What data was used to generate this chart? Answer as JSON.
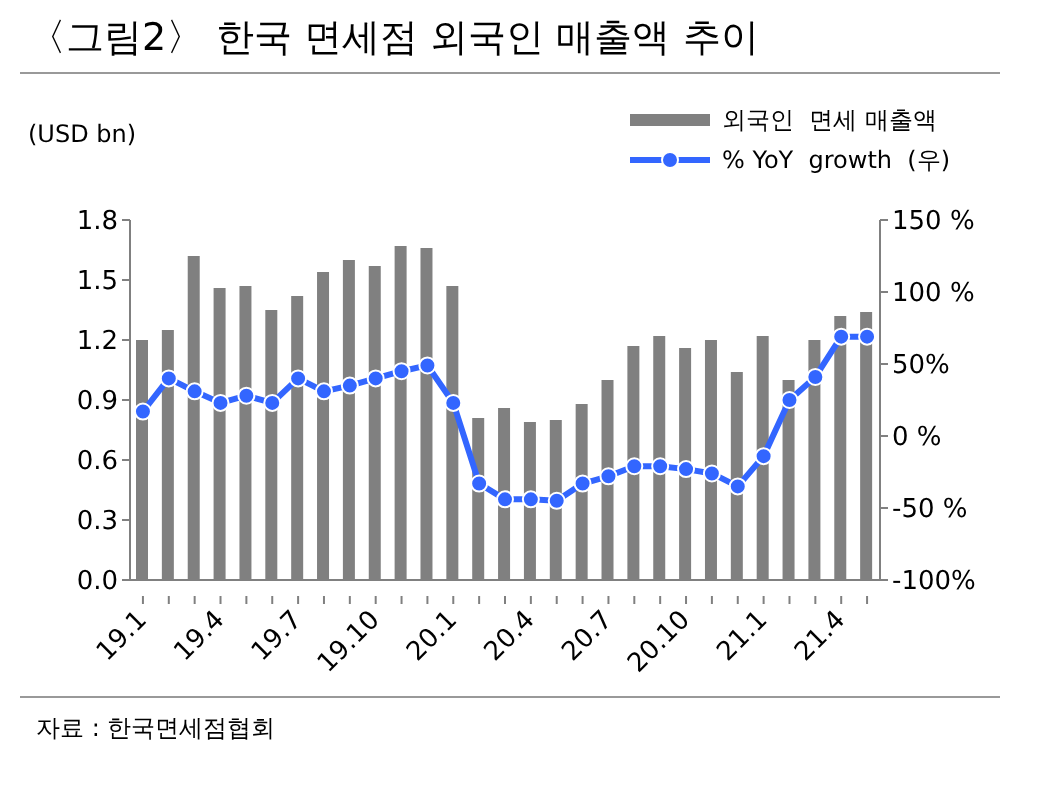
{
  "chart_data": {
    "type": "bar",
    "title": "〈그림2〉 한국 면세점 외국인 매출액 추이",
    "ylabel": "(USD bn)",
    "categories": [
      "19.1",
      null,
      null,
      "19.4",
      null,
      null,
      "19.7",
      null,
      null,
      "19.10",
      null,
      null,
      "20.1",
      null,
      null,
      "20.4",
      null,
      null,
      "20.7",
      null,
      null,
      "20.10",
      null,
      null,
      "21.1",
      null,
      null,
      "21.4",
      null
    ],
    "series": [
      {
        "name": "외국인  면세 매출액",
        "color": "#808080",
        "values": [
          1.2,
          1.25,
          1.62,
          1.46,
          1.47,
          1.35,
          1.42,
          1.54,
          1.6,
          1.57,
          1.67,
          1.66,
          1.47,
          0.81,
          0.86,
          0.79,
          0.8,
          0.88,
          1.0,
          1.17,
          1.22,
          1.16,
          1.2,
          1.04,
          1.22,
          1.0,
          1.2,
          1.32,
          1.34
        ]
      },
      {
        "name": "% YoY  growth  (우)",
        "type": "line",
        "axis": "y2",
        "color": "#3366ff",
        "values": [
          17,
          40,
          31,
          23,
          28,
          23,
          40,
          31,
          35,
          40,
          45,
          49,
          23,
          -33,
          -44,
          -44,
          -45,
          -33,
          -28,
          -21,
          -21,
          -23,
          -26,
          -35,
          -14,
          25,
          41,
          69,
          69
        ]
      }
    ],
    "ylim": [
      0,
      1.8
    ],
    "yticks": [
      {
        "value": 0,
        "label": "0.0"
      },
      0.3,
      0.6,
      0.9,
      1.2,
      1.5,
      1.8
    ],
    "y2lim": [
      -100,
      150
    ],
    "y2ticks": [
      {
        "value": -100,
        "label": "-100%"
      },
      {
        "value": -50,
        "label": "-50 %"
      },
      {
        "value": 0,
        "label": "0 %"
      },
      {
        "value": 50,
        "label": "50%"
      },
      {
        "value": 100,
        "label": "100 %"
      },
      {
        "value": 150,
        "label": "150 %"
      }
    ],
    "legend": "top right",
    "marker": "circle",
    "grid": false,
    "annotations": [
      "자료 : 한국면세점협회"
    ]
  }
}
